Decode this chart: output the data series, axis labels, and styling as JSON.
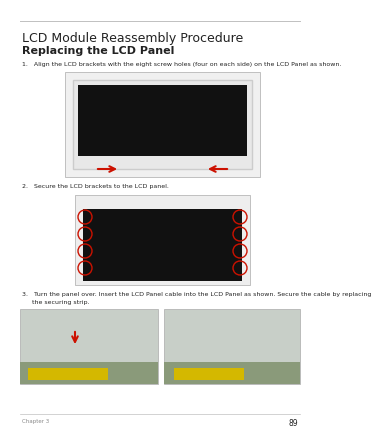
{
  "page_number": "89",
  "chapter_info": "Chapter 3",
  "top_title": "LCD Module Reassembly Procedure",
  "subtitle": "Replacing the LCD Panel",
  "bg_color": "#ffffff",
  "line_color": "#c0c0c0",
  "text_color": "#222222",
  "gray_text": "#888888",
  "step1_text": "1.   Align the LCD brackets with the eight screw holes (four on each side) on the LCD Panel as shown.",
  "step2_text": "2.   Secure the LCD brackets to the LCD panel.",
  "step3_line1": "3.   Turn the panel over. Insert the LCD Panel cable into the LCD Panel as shown. Secure the cable by replacing",
  "step3_line2": "     the securing strip.",
  "arrow_color": "#cc1100",
  "circle_color": "#cc1100",
  "img1_bg": "#f0f0f0",
  "img1_screen": "#111111",
  "img1_bezel": "#dddddd",
  "img2_bg": "#eeeeee",
  "img2_screen": "#111111",
  "img3_bg_left": "#c8cfc8",
  "img3_bg_right": "#c8cfc8",
  "yellow_color": "#d4b800"
}
